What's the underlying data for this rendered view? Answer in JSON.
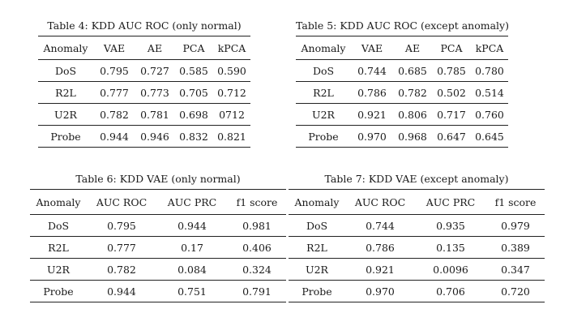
{
  "tables": [
    {
      "caption": "Table 4: KDD AUC ROC (only normal)",
      "headers": [
        "Anomaly",
        "VAE",
        "AE",
        "PCA",
        "kPCA"
      ],
      "rows": [
        [
          "DoS",
          "0.795",
          "0.727",
          "0.585",
          "0.590"
        ],
        [
          "R2L",
          "0.777",
          "0.773",
          "0.705",
          "0.712"
        ],
        [
          "U2R",
          "0.782",
          "0.781",
          "0.698",
          "0712"
        ],
        [
          "Probe",
          "0.944",
          "0.946",
          "0.832",
          "0.821"
        ]
      ]
    },
    {
      "caption": "Table 5: KDD AUC ROC (except anomaly)",
      "headers": [
        "Anomaly",
        "VAE",
        "AE",
        "PCA",
        "kPCA"
      ],
      "rows": [
        [
          "DoS",
          "0.744",
          "0.685",
          "0.785",
          "0.780"
        ],
        [
          "R2L",
          "0.786",
          "0.782",
          "0.502",
          "0.514"
        ],
        [
          "U2R",
          "0.921",
          "0.806",
          "0.717",
          "0.760"
        ],
        [
          "Probe",
          "0.970",
          "0.968",
          "0.647",
          "0.645"
        ]
      ]
    },
    {
      "caption": "Table 6: KDD VAE (only normal)",
      "headers": [
        "Anomaly",
        "AUC ROC",
        "AUC PRC",
        "f1 score"
      ],
      "rows": [
        [
          "DoS",
          "0.795",
          "0.944",
          "0.981"
        ],
        [
          "R2L",
          "0.777",
          "0.17",
          "0.406"
        ],
        [
          "U2R",
          "0.782",
          "0.084",
          "0.324"
        ],
        [
          "Probe",
          "0.944",
          "0.751",
          "0.791"
        ]
      ]
    },
    {
      "caption": "Table 7: KDD VAE (except anomaly)",
      "headers": [
        "Anomaly",
        "AUC ROC",
        "AUC PRC",
        "f1 score"
      ],
      "rows": [
        [
          "DoS",
          "0.744",
          "0.935",
          "0.979"
        ],
        [
          "R2L",
          "0.786",
          "0.135",
          "0.389"
        ],
        [
          "U2R",
          "0.921",
          "0.0096",
          "0.347"
        ],
        [
          "Probe",
          "0.970",
          "0.706",
          "0.720"
        ]
      ]
    }
  ]
}
